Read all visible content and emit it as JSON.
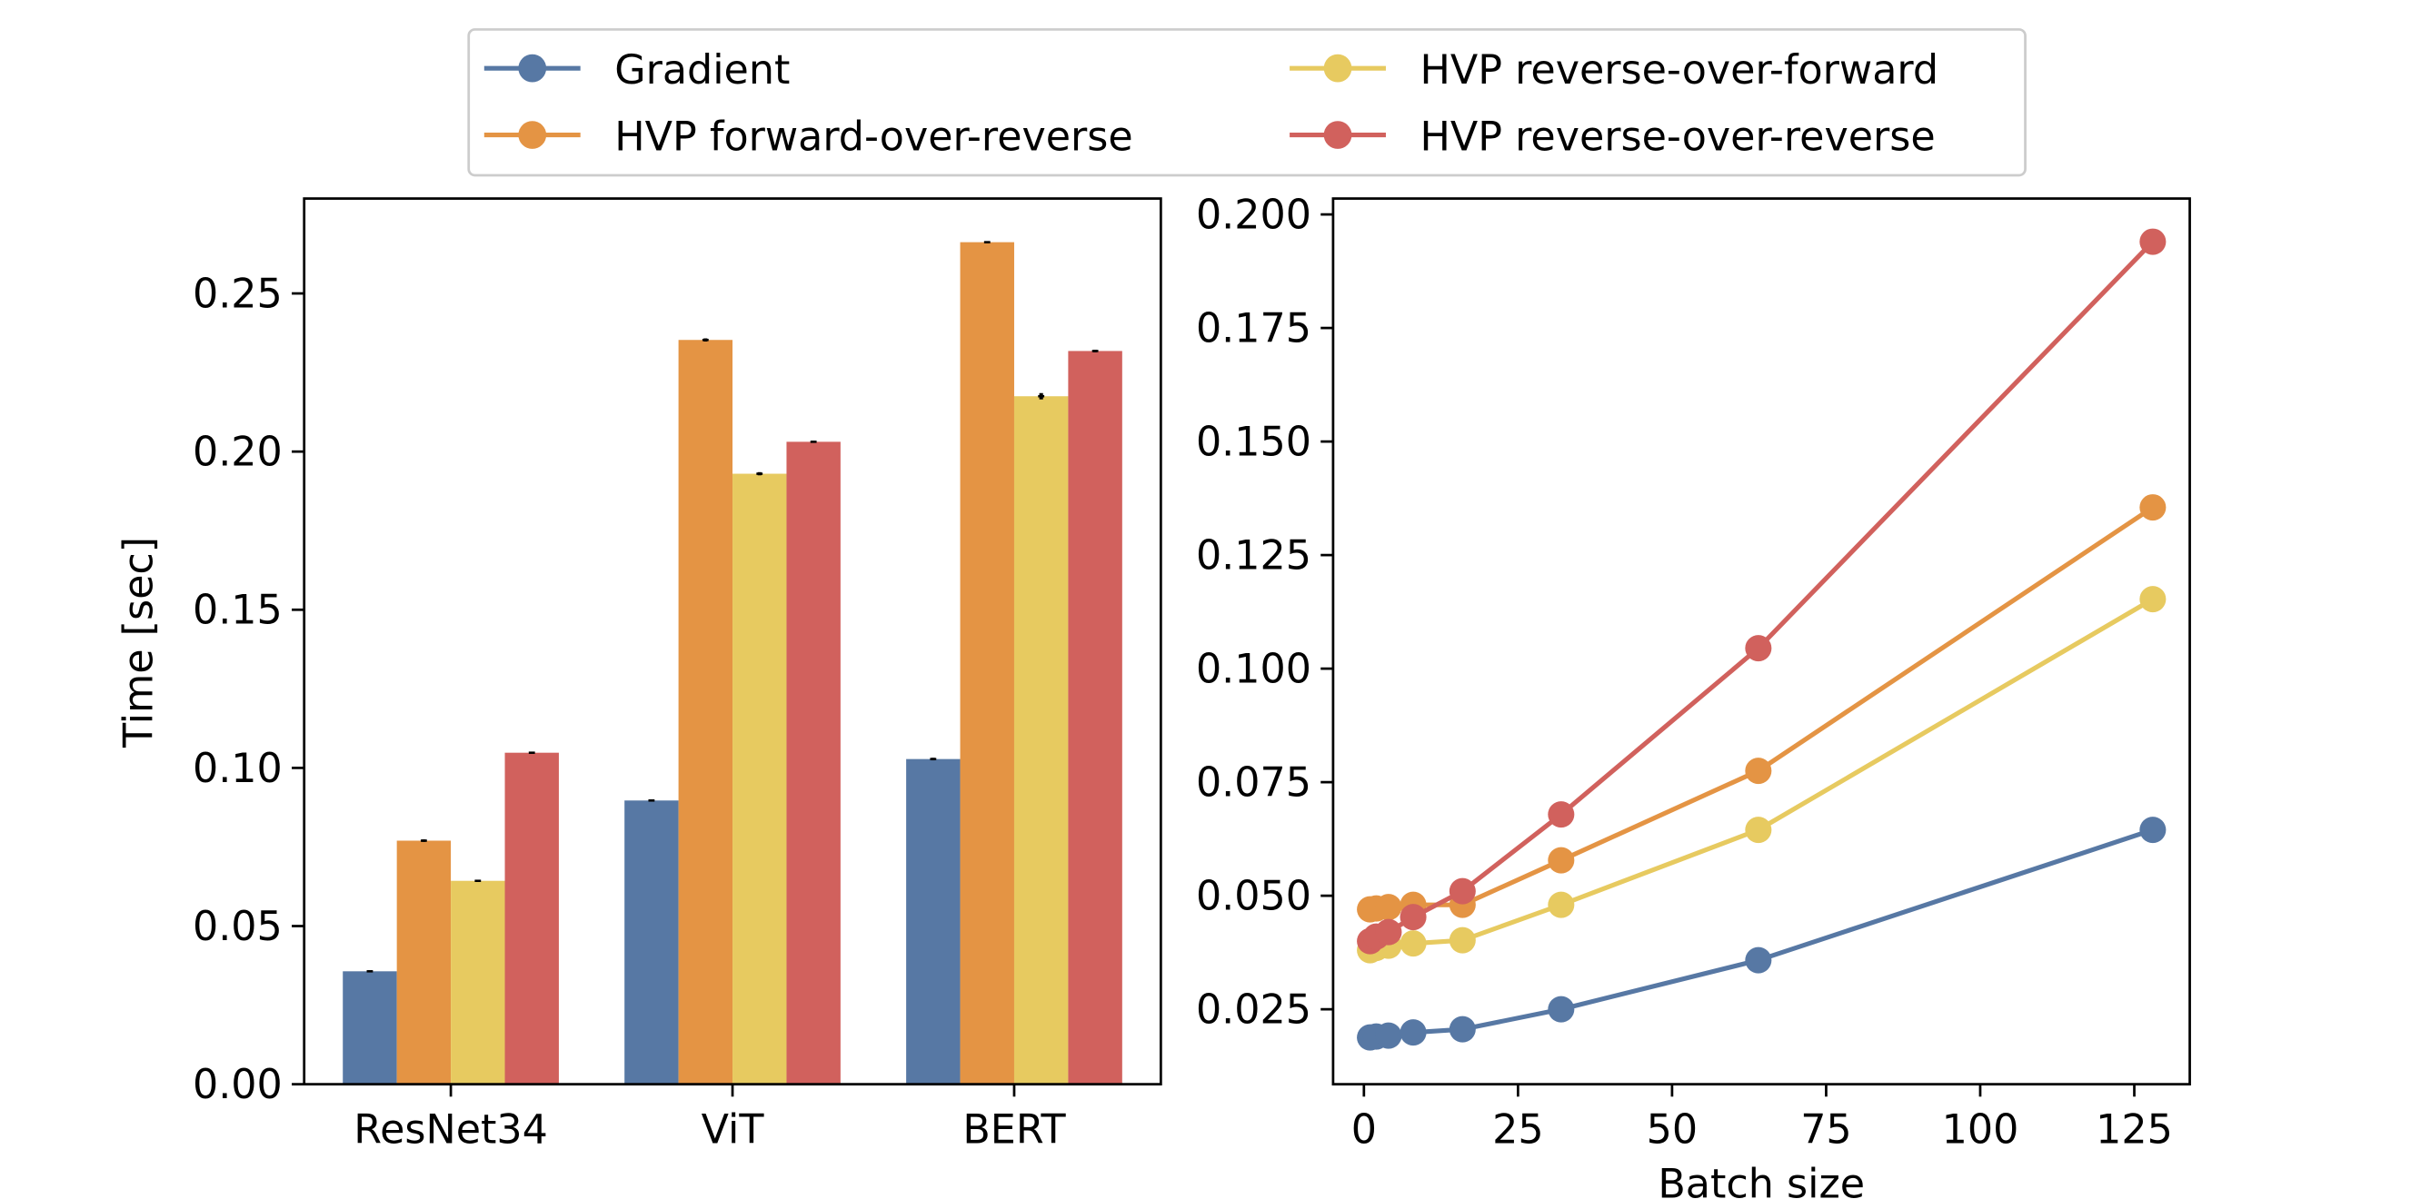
{
  "legend": {
    "entries": [
      {
        "label": "Gradient",
        "color": "#5778a4"
      },
      {
        "label": "HVP forward-over-reverse",
        "color": "#e49444"
      },
      {
        "label": "HVP reverse-over-forward",
        "color": "#e7ca60"
      },
      {
        "label": "HVP reverse-over-reverse",
        "color": "#d1615d"
      }
    ],
    "placement": "top-center",
    "columns": 2
  },
  "chart_data": [
    {
      "type": "bar",
      "title": "",
      "xlabel": "",
      "ylabel": "Time [sec]",
      "categories": [
        "ResNet34",
        "ViT",
        "BERT"
      ],
      "ylim": [
        0,
        0.28
      ],
      "yticks": [
        "0.00",
        "0.05",
        "0.10",
        "0.15",
        "0.20",
        "0.25"
      ],
      "ytick_values": [
        0,
        0.05,
        0.1,
        0.15,
        0.2,
        0.25
      ],
      "error_bars": true,
      "series": [
        {
          "name": "Gradient",
          "color": "#5778a4",
          "values": [
            0.0357,
            0.0897,
            0.1028
          ],
          "errors": [
            0.0002,
            0.0003,
            0.0004
          ]
        },
        {
          "name": "HVP forward-over-reverse",
          "color": "#e49444",
          "values": [
            0.077,
            0.2353,
            0.2662
          ],
          "errors": [
            0.0004,
            0.0005,
            0.0003
          ]
        },
        {
          "name": "HVP reverse-over-forward",
          "color": "#e7ca60",
          "values": [
            0.0643,
            0.193,
            0.2175
          ],
          "errors": [
            0.0002,
            0.0005,
            0.001
          ]
        },
        {
          "name": "HVP reverse-over-reverse",
          "color": "#d1615d",
          "values": [
            0.1048,
            0.2031,
            0.2318
          ],
          "errors": [
            0.0003,
            0.0003,
            0.0004
          ]
        }
      ]
    },
    {
      "type": "line",
      "title": "",
      "xlabel": "Batch size",
      "ylabel": "",
      "x": [
        1,
        2,
        4,
        8,
        16,
        32,
        64,
        128
      ],
      "xlim": [
        -5,
        134
      ],
      "ylim": [
        0.0085,
        0.2035
      ],
      "xticks": [
        "0",
        "25",
        "50",
        "75",
        "100",
        "125"
      ],
      "xtick_values": [
        0,
        25,
        50,
        75,
        100,
        125
      ],
      "yticks": [
        "0.025",
        "0.050",
        "0.075",
        "0.100",
        "0.125",
        "0.150",
        "0.175",
        "0.200"
      ],
      "ytick_values": [
        0.025,
        0.05,
        0.075,
        0.1,
        0.125,
        0.15,
        0.175,
        0.2
      ],
      "markers": true,
      "series": [
        {
          "name": "Gradient",
          "color": "#5778a4",
          "values": [
            0.0188,
            0.019,
            0.0192,
            0.0199,
            0.0206,
            0.025,
            0.0358,
            0.0645
          ]
        },
        {
          "name": "HVP forward-over-reverse",
          "color": "#e49444",
          "values": [
            0.047,
            0.0472,
            0.0475,
            0.048,
            0.048,
            0.0578,
            0.0775,
            0.1355
          ]
        },
        {
          "name": "HVP reverse-over-forward",
          "color": "#e7ca60",
          "values": [
            0.038,
            0.0385,
            0.039,
            0.0395,
            0.0402,
            0.048,
            0.0645,
            0.1153
          ]
        },
        {
          "name": "HVP reverse-over-reverse",
          "color": "#d1615d",
          "values": [
            0.04,
            0.041,
            0.042,
            0.0453,
            0.051,
            0.0679,
            0.1045,
            0.194
          ]
        }
      ]
    }
  ]
}
